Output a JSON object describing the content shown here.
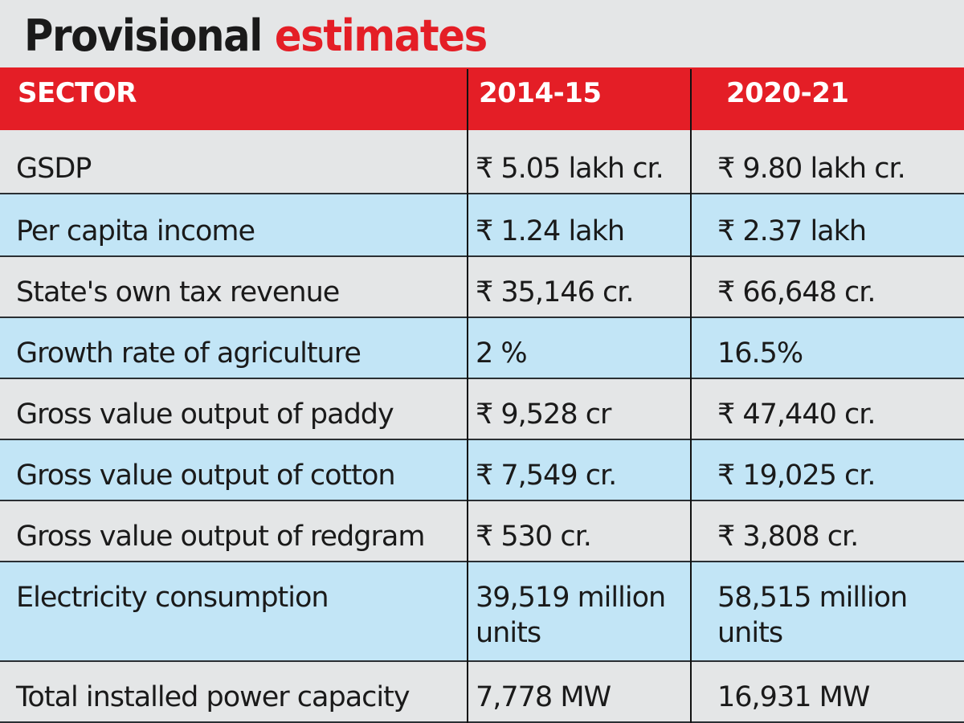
{
  "title": {
    "part1": "Provisional",
    "part2": "estimates"
  },
  "colors": {
    "header_red": "#e41e26",
    "title_red": "#e41e26",
    "row_grey": "#e4e6e7",
    "row_blue": "#c2e5f6"
  },
  "chart_data": {
    "type": "table",
    "title": "Provisional estimates",
    "columns": [
      "SECTOR",
      "2014-15",
      "2020-21"
    ],
    "rows": [
      [
        "GSDP",
        "₹ 5.05 lakh cr.",
        "₹ 9.80 lakh cr."
      ],
      [
        "Per capita income",
        "₹ 1.24 lakh",
        "₹ 2.37 lakh"
      ],
      [
        "State's own tax revenue",
        "₹ 35,146 cr.",
        "₹ 66,648 cr."
      ],
      [
        "Growth rate of agriculture",
        "2 %",
        "16.5%"
      ],
      [
        "Gross value output of paddy",
        "₹ 9,528 cr",
        "₹ 47,440 cr."
      ],
      [
        "Gross value output of cotton",
        "₹ 7,549 cr.",
        "₹ 19,025 cr."
      ],
      [
        "Gross value output of redgram",
        "₹ 530 cr.",
        "₹ 3,808 cr."
      ],
      [
        "Electricity consumption",
        "39,519 million units",
        "58,515 million units"
      ],
      [
        "Total installed power capacity",
        "7,778 MW",
        "16,931 MW"
      ]
    ]
  }
}
